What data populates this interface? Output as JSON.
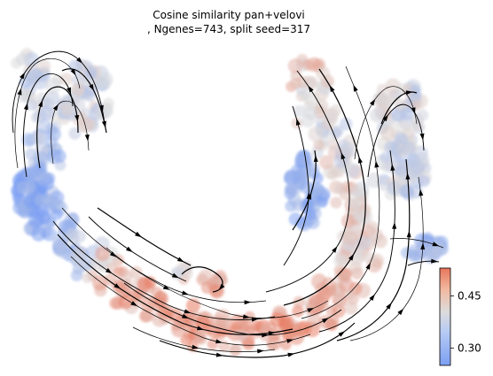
{
  "chart_data": {
    "type": "scatter",
    "title_lines": [
      "Cosine similarity pan+velovi",
      ", Ngenes=743, split seed=317"
    ],
    "xlabel": "",
    "ylabel": "",
    "grid": false,
    "axes_visible": false,
    "colormap": "coolwarm",
    "colorbar": {
      "range": [
        0.25,
        0.53
      ],
      "ticks": [
        {
          "value": 0.3,
          "label": "0.30"
        },
        {
          "value": 0.45,
          "label": "0.45"
        }
      ]
    },
    "overlay": "velocity-streamlines"
  },
  "colors": {
    "low": "#7b9ff2",
    "mid": "#dddcdc",
    "high": "#e8755a",
    "stream": "#000000"
  }
}
